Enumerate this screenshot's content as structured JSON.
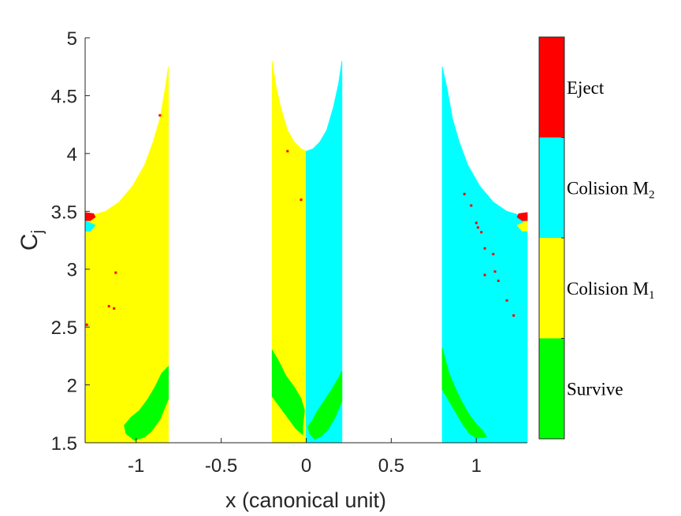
{
  "chart_data": {
    "type": "heatmap",
    "title": "",
    "xlabel": "x (canonical unit)",
    "ylabel_main": "C",
    "ylabel_sub": "j",
    "xlim": [
      -1.3,
      1.3
    ],
    "ylim": [
      1.5,
      5
    ],
    "xticks": [
      -1,
      -0.5,
      0,
      0.5,
      1
    ],
    "xtick_labels": [
      "-1",
      "-0.5",
      "0",
      "0.5",
      "1"
    ],
    "yticks": [
      1.5,
      2,
      2.5,
      3,
      3.5,
      4,
      4.5,
      5
    ],
    "ytick_labels": [
      "1.5",
      "2",
      "2.5",
      "3",
      "3.5",
      "4",
      "4.5",
      "5"
    ],
    "grid": false,
    "colors": {
      "eject": "#ff0000",
      "collision_m2": "#00ffff",
      "collision_m1": "#ffff00",
      "survive": "#00ff00"
    },
    "colorbar": {
      "position": "right",
      "categories": [
        {
          "key": "eject",
          "label": "Eject",
          "sub": ""
        },
        {
          "key": "collision_m2",
          "label": "Colision M",
          "sub": "2"
        },
        {
          "key": "collision_m1",
          "label": "Colision M",
          "sub": "1"
        },
        {
          "key": "survive",
          "label": "Survive",
          "sub": ""
        }
      ]
    },
    "regions": [
      {
        "name": "left-collision-m1",
        "class": "collision_m1",
        "points": [
          [
            -1.3,
            1.5
          ],
          [
            -0.81,
            1.5
          ],
          [
            -0.81,
            4.75
          ],
          [
            -0.83,
            4.55
          ],
          [
            -0.86,
            4.3
          ],
          [
            -0.9,
            4.1
          ],
          [
            -0.95,
            3.9
          ],
          [
            -1.02,
            3.72
          ],
          [
            -1.1,
            3.58
          ],
          [
            -1.18,
            3.5
          ],
          [
            -1.25,
            3.47
          ],
          [
            -1.3,
            3.47
          ]
        ]
      },
      {
        "name": "left-collision-m2-sliver",
        "class": "collision_m2",
        "points": [
          [
            -1.3,
            3.42
          ],
          [
            -1.27,
            3.4
          ],
          [
            -1.24,
            3.38
          ],
          [
            -1.27,
            3.33
          ],
          [
            -1.3,
            3.33
          ]
        ]
      },
      {
        "name": "left-eject-patch",
        "class": "eject",
        "points": [
          [
            -1.3,
            3.49
          ],
          [
            -1.25,
            3.48
          ],
          [
            -1.24,
            3.45
          ],
          [
            -1.27,
            3.42
          ],
          [
            -1.3,
            3.42
          ]
        ]
      },
      {
        "name": "left-survive",
        "class": "survive",
        "points": [
          [
            -0.81,
            2.16
          ],
          [
            -0.81,
            1.88
          ],
          [
            -0.86,
            1.7
          ],
          [
            -0.91,
            1.6
          ],
          [
            -0.95,
            1.55
          ],
          [
            -1.01,
            1.52
          ],
          [
            -1.06,
            1.58
          ],
          [
            -1.07,
            1.65
          ],
          [
            -1.03,
            1.72
          ],
          [
            -0.98,
            1.78
          ],
          [
            -0.93,
            1.88
          ],
          [
            -0.89,
            1.98
          ],
          [
            -0.85,
            2.1
          ]
        ]
      },
      {
        "name": "center-collision-m1",
        "class": "collision_m1",
        "points": [
          [
            -0.2,
            1.5
          ],
          [
            0,
            1.5
          ],
          [
            0,
            4.02
          ],
          [
            -0.03,
            4.04
          ],
          [
            -0.07,
            4.1
          ],
          [
            -0.11,
            4.2
          ],
          [
            -0.15,
            4.4
          ],
          [
            -0.18,
            4.6
          ],
          [
            -0.2,
            4.8
          ]
        ]
      },
      {
        "name": "center-collision-m2",
        "class": "collision_m2",
        "points": [
          [
            0,
            1.5
          ],
          [
            0.21,
            1.5
          ],
          [
            0.21,
            4.8
          ],
          [
            0.19,
            4.6
          ],
          [
            0.16,
            4.4
          ],
          [
            0.12,
            4.2
          ],
          [
            0.08,
            4.1
          ],
          [
            0.04,
            4.04
          ],
          [
            0,
            4.02
          ]
        ]
      },
      {
        "name": "center-survive-left",
        "class": "survive",
        "points": [
          [
            -0.2,
            2.3
          ],
          [
            -0.2,
            1.9
          ],
          [
            -0.15,
            1.8
          ],
          [
            -0.1,
            1.7
          ],
          [
            -0.06,
            1.62
          ],
          [
            -0.02,
            1.57
          ],
          [
            -0.02,
            1.65
          ],
          [
            -0.01,
            1.78
          ],
          [
            -0.03,
            1.88
          ],
          [
            -0.07,
            1.98
          ],
          [
            -0.12,
            2.08
          ],
          [
            -0.16,
            2.2
          ]
        ]
      },
      {
        "name": "center-survive-right",
        "class": "survive",
        "points": [
          [
            0.21,
            2.12
          ],
          [
            0.21,
            1.86
          ],
          [
            0.17,
            1.72
          ],
          [
            0.13,
            1.62
          ],
          [
            0.09,
            1.56
          ],
          [
            0.05,
            1.53
          ],
          [
            0.02,
            1.58
          ],
          [
            0.01,
            1.64
          ],
          [
            0.04,
            1.7
          ],
          [
            0.06,
            1.76
          ],
          [
            0.1,
            1.85
          ],
          [
            0.15,
            1.96
          ],
          [
            0.19,
            2.06
          ]
        ]
      },
      {
        "name": "right-collision-m2",
        "class": "collision_m2",
        "points": [
          [
            0.8,
            1.5
          ],
          [
            1.3,
            1.5
          ],
          [
            1.3,
            3.47
          ],
          [
            1.25,
            3.47
          ],
          [
            1.18,
            3.5
          ],
          [
            1.1,
            3.58
          ],
          [
            1.02,
            3.72
          ],
          [
            0.95,
            3.9
          ],
          [
            0.9,
            4.1
          ],
          [
            0.86,
            4.3
          ],
          [
            0.83,
            4.55
          ],
          [
            0.8,
            4.75
          ]
        ]
      },
      {
        "name": "right-collision-m1-sliver",
        "class": "collision_m1",
        "points": [
          [
            1.3,
            3.42
          ],
          [
            1.27,
            3.4
          ],
          [
            1.24,
            3.38
          ],
          [
            1.27,
            3.33
          ],
          [
            1.3,
            3.33
          ]
        ]
      },
      {
        "name": "right-eject-patch",
        "class": "eject",
        "points": [
          [
            1.3,
            3.49
          ],
          [
            1.25,
            3.48
          ],
          [
            1.24,
            3.45
          ],
          [
            1.27,
            3.42
          ],
          [
            1.3,
            3.42
          ]
        ]
      },
      {
        "name": "right-survive",
        "class": "survive",
        "points": [
          [
            0.8,
            2.32
          ],
          [
            0.8,
            1.96
          ],
          [
            0.84,
            1.86
          ],
          [
            0.88,
            1.76
          ],
          [
            0.92,
            1.66
          ],
          [
            0.96,
            1.58
          ],
          [
            1.0,
            1.54
          ],
          [
            1.06,
            1.55
          ],
          [
            1.04,
            1.6
          ],
          [
            1.0,
            1.66
          ],
          [
            0.96,
            1.74
          ],
          [
            0.92,
            1.84
          ],
          [
            0.88,
            1.96
          ],
          [
            0.84,
            2.1
          ]
        ]
      }
    ],
    "scatter": [
      {
        "class": "eject",
        "x": -0.86,
        "y": 4.33
      },
      {
        "class": "eject",
        "x": -1.12,
        "y": 2.97
      },
      {
        "class": "eject",
        "x": -1.16,
        "y": 2.68
      },
      {
        "class": "eject",
        "x": -1.13,
        "y": 2.66
      },
      {
        "class": "eject",
        "x": -1.29,
        "y": 2.52
      },
      {
        "class": "eject",
        "x": -0.11,
        "y": 4.02
      },
      {
        "class": "eject",
        "x": -0.03,
        "y": 3.6
      },
      {
        "class": "eject",
        "x": 0.93,
        "y": 3.65
      },
      {
        "class": "eject",
        "x": 0.97,
        "y": 3.55
      },
      {
        "class": "eject",
        "x": 1.0,
        "y": 3.4
      },
      {
        "class": "eject",
        "x": 1.01,
        "y": 3.36
      },
      {
        "class": "eject",
        "x": 1.03,
        "y": 3.32
      },
      {
        "class": "eject",
        "x": 1.05,
        "y": 3.18
      },
      {
        "class": "eject",
        "x": 1.1,
        "y": 3.13
      },
      {
        "class": "eject",
        "x": 1.11,
        "y": 2.98
      },
      {
        "class": "eject",
        "x": 1.05,
        "y": 2.95
      },
      {
        "class": "eject",
        "x": 1.13,
        "y": 2.9
      },
      {
        "class": "eject",
        "x": 1.18,
        "y": 2.73
      },
      {
        "class": "eject",
        "x": 1.22,
        "y": 2.6
      }
    ]
  }
}
